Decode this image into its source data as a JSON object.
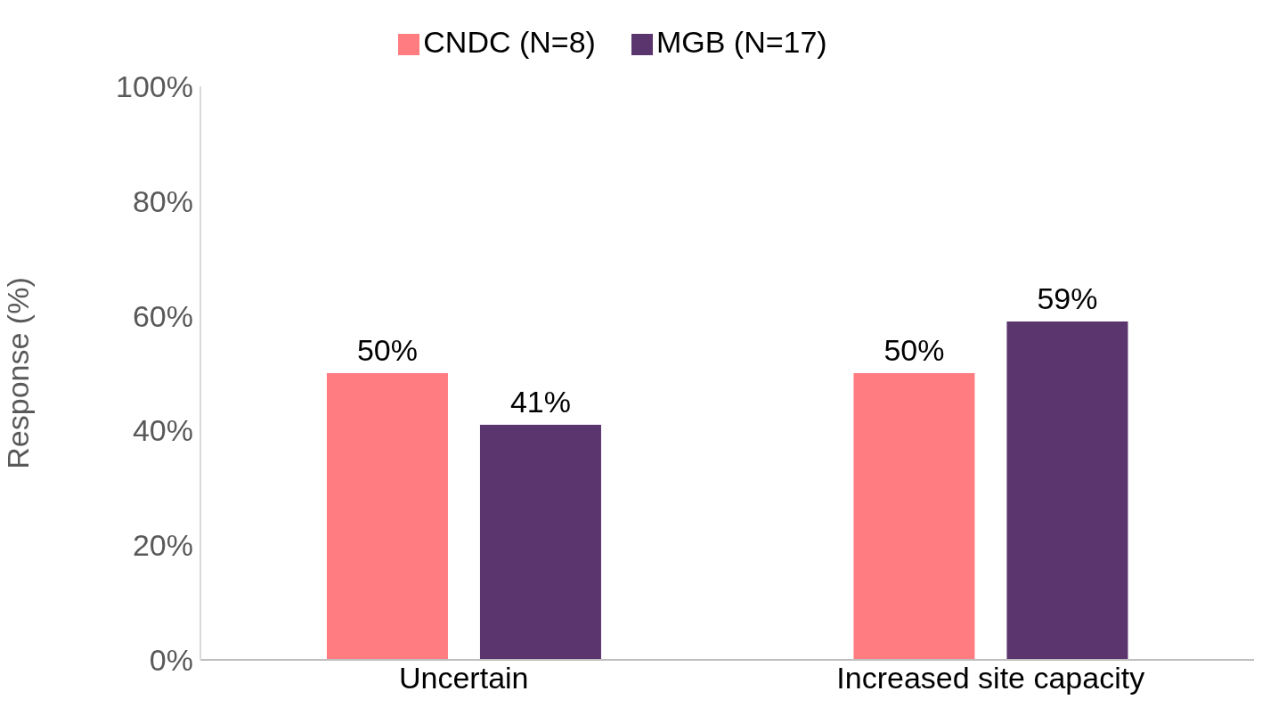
{
  "chart_data": {
    "type": "bar",
    "ylabel": "Response (%)",
    "categories": [
      "Uncertain",
      "Increased site capacity"
    ],
    "series": [
      {
        "name": "CNDC (N=8)",
        "color": "#ff7c80",
        "values": [
          50,
          50
        ],
        "value_labels": [
          "50%",
          "50%"
        ]
      },
      {
        "name": "MGB (N=17)",
        "color": "#5b356e",
        "values": [
          41,
          59
        ],
        "value_labels": [
          "41%",
          "59%"
        ]
      }
    ],
    "ylim": [
      0,
      100
    ],
    "yticks": [
      {
        "value": 0,
        "label": "0%"
      },
      {
        "value": 20,
        "label": "20%"
      },
      {
        "value": 40,
        "label": "40%"
      },
      {
        "value": 60,
        "label": "60%"
      },
      {
        "value": 80,
        "label": "80%"
      },
      {
        "value": 100,
        "label": "100%"
      }
    ],
    "grid": false,
    "legend": "top"
  }
}
